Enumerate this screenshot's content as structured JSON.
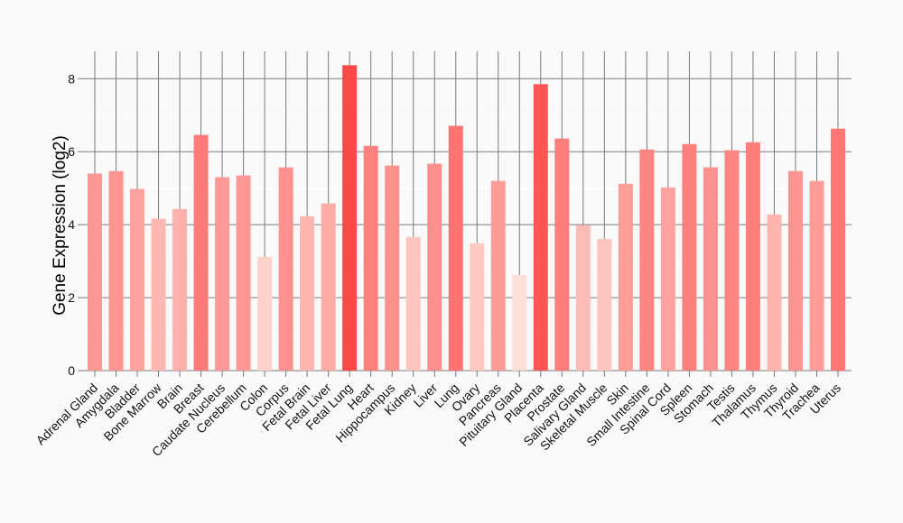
{
  "chart_data": {
    "type": "bar",
    "title": "",
    "xlabel": "",
    "ylabel": "Gene Expression (log2)",
    "ylim": [
      0,
      8.7
    ],
    "yticks": [
      0,
      2,
      4,
      6,
      8
    ],
    "grid": true,
    "categories": [
      "Adrenal Gland",
      "Amygdala",
      "Bladder",
      "Bone Marrow",
      "Brain",
      "Breast",
      "Caudate Nucleus",
      "Cerebellum",
      "Colon",
      "Corpus",
      "Fetal Brain",
      "Fetal Liver",
      "Fetal Lung",
      "Heart",
      "Hippocampus",
      "Kidney",
      "Liver",
      "Lung",
      "Ovary",
      "Pancreas",
      "Pituitary Gland",
      "Placenta",
      "Prostate",
      "Salivary Gland",
      "Skeletal Muscle",
      "Skin",
      "Small Intestine",
      "Spinal Cord",
      "Spleen",
      "Stomach",
      "Testis",
      "Thalamus",
      "Thymus",
      "Thyroid",
      "Trachea",
      "Uterus"
    ],
    "values": [
      5.4,
      5.47,
      4.98,
      4.16,
      4.43,
      6.46,
      5.3,
      5.35,
      3.12,
      5.57,
      4.23,
      4.58,
      8.37,
      6.16,
      5.62,
      3.66,
      5.67,
      6.71,
      3.49,
      5.2,
      2.62,
      7.85,
      6.36,
      3.99,
      3.61,
      5.12,
      6.06,
      5.02,
      6.21,
      5.57,
      6.04,
      6.26,
      4.28,
      5.47,
      5.2,
      6.63
    ],
    "color_low": "#ffe0d8",
    "color_high": "#ff4848"
  }
}
